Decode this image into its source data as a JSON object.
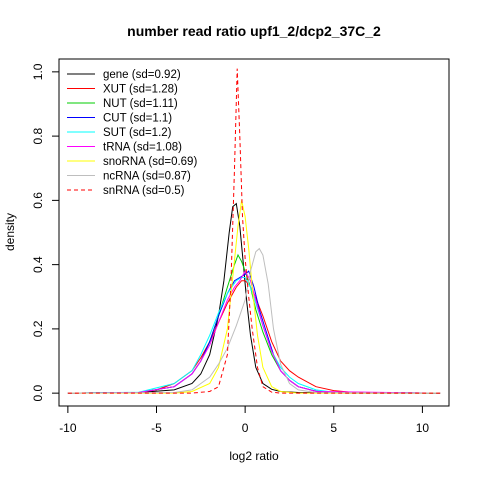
{
  "chart_data": {
    "type": "line",
    "title": "number read ratio upf1_2/dcp2_37C_2",
    "xlabel": "log2 ratio",
    "ylabel": "density",
    "xlim": [
      -10.5,
      11.5
    ],
    "ylim": [
      -0.04,
      1.04
    ],
    "xticks": [
      -10,
      -5,
      0,
      5,
      10
    ],
    "yticks": [
      0.0,
      0.2,
      0.4,
      0.6,
      0.8,
      1.0
    ],
    "xtick_labels": [
      "-10",
      "-5",
      "0",
      "5",
      "10"
    ],
    "ytick_labels": [
      "0.0",
      "0.2",
      "0.4",
      "0.6",
      "0.8",
      "1.0"
    ],
    "legend_position": "top-left",
    "series": [
      {
        "name": "gene (sd=0.92)",
        "color": "#000000",
        "dash": false,
        "x": [
          -10,
          -6,
          -4,
          -3,
          -2.5,
          -2,
          -1.5,
          -1.2,
          -0.9,
          -0.7,
          -0.5,
          -0.3,
          -0.1,
          0.1,
          0.3,
          0.6,
          1.0,
          1.5,
          2.0,
          3.0,
          4.0,
          6.0,
          11
        ],
        "y": [
          0.0,
          0.002,
          0.01,
          0.03,
          0.06,
          0.12,
          0.24,
          0.35,
          0.5,
          0.58,
          0.59,
          0.52,
          0.4,
          0.28,
          0.18,
          0.08,
          0.03,
          0.012,
          0.005,
          0.002,
          0.001,
          0.0,
          0.0
        ]
      },
      {
        "name": "XUT (sd=1.28)",
        "color": "#ff0000",
        "dash": false,
        "x": [
          -10,
          -6,
          -5,
          -4,
          -3,
          -2.5,
          -2,
          -1.5,
          -1,
          -0.5,
          -0.2,
          0,
          0.2,
          0.5,
          1,
          1.5,
          2,
          2.5,
          3,
          4,
          5,
          6,
          8,
          11
        ],
        "y": [
          0.0,
          0.002,
          0.01,
          0.03,
          0.07,
          0.11,
          0.16,
          0.22,
          0.28,
          0.33,
          0.35,
          0.35,
          0.34,
          0.31,
          0.24,
          0.16,
          0.1,
          0.07,
          0.05,
          0.02,
          0.008,
          0.003,
          0.001,
          0.0
        ]
      },
      {
        "name": "NUT (sd=1.11)",
        "color": "#00cc00",
        "dash": false,
        "x": [
          -10,
          -6,
          -4,
          -3,
          -2.5,
          -2,
          -1.5,
          -1,
          -0.6,
          -0.4,
          -0.2,
          0,
          0.3,
          0.6,
          1,
          1.5,
          2,
          2.5,
          3,
          4,
          5,
          11
        ],
        "y": [
          0.0,
          0.002,
          0.02,
          0.06,
          0.1,
          0.16,
          0.24,
          0.33,
          0.4,
          0.43,
          0.41,
          0.38,
          0.33,
          0.26,
          0.19,
          0.12,
          0.07,
          0.04,
          0.02,
          0.006,
          0.002,
          0.0
        ]
      },
      {
        "name": "CUT (sd=1.1)",
        "color": "#0000ff",
        "dash": false,
        "x": [
          -10,
          -6,
          -4,
          -3,
          -2.5,
          -2,
          -1.5,
          -1,
          -0.6,
          -0.3,
          0,
          0.2,
          0.5,
          0.8,
          1.2,
          1.6,
          2,
          2.5,
          3,
          4,
          5,
          11
        ],
        "y": [
          0.0,
          0.002,
          0.02,
          0.06,
          0.1,
          0.16,
          0.24,
          0.31,
          0.35,
          0.36,
          0.37,
          0.38,
          0.33,
          0.26,
          0.19,
          0.12,
          0.07,
          0.04,
          0.02,
          0.006,
          0.002,
          0.0
        ]
      },
      {
        "name": "SUT (sd=1.2)",
        "color": "#00ffff",
        "dash": false,
        "x": [
          -10,
          -6,
          -4,
          -3,
          -2.5,
          -2,
          -1.5,
          -1,
          -0.5,
          -0.2,
          0,
          0.3,
          0.6,
          1,
          1.5,
          2,
          2.5,
          3,
          4,
          5,
          11
        ],
        "y": [
          0.0,
          0.003,
          0.03,
          0.07,
          0.12,
          0.18,
          0.25,
          0.31,
          0.35,
          0.36,
          0.36,
          0.33,
          0.28,
          0.21,
          0.13,
          0.08,
          0.05,
          0.03,
          0.01,
          0.003,
          0.0
        ]
      },
      {
        "name": "tRNA (sd=1.08)",
        "color": "#ff00ff",
        "dash": false,
        "x": [
          -10,
          -6,
          -4,
          -3,
          -2.5,
          -2,
          -1.5,
          -1,
          -0.6,
          -0.3,
          0,
          0.3,
          0.6,
          1,
          1.5,
          2,
          2.5,
          3,
          4,
          11
        ],
        "y": [
          0.0,
          0.002,
          0.02,
          0.06,
          0.1,
          0.15,
          0.22,
          0.29,
          0.33,
          0.35,
          0.38,
          0.35,
          0.29,
          0.21,
          0.13,
          0.07,
          0.04,
          0.02,
          0.005,
          0.0
        ]
      },
      {
        "name": "snoRNA (sd=0.69)",
        "color": "#ffff00",
        "dash": false,
        "x": [
          -10,
          -4,
          -3,
          -2,
          -1.5,
          -1,
          -0.7,
          -0.4,
          -0.2,
          0,
          0.2,
          0.4,
          0.7,
          1,
          1.5,
          2,
          3,
          11
        ],
        "y": [
          0.0,
          0.0,
          0.005,
          0.03,
          0.08,
          0.2,
          0.36,
          0.52,
          0.6,
          0.55,
          0.45,
          0.33,
          0.18,
          0.08,
          0.02,
          0.005,
          0.0,
          0.0
        ]
      },
      {
        "name": "ncRNA (sd=0.87)",
        "color": "#bebebe",
        "dash": false,
        "x": [
          -10,
          -4,
          -3,
          -2,
          -1.5,
          -1,
          -0.5,
          0,
          0.3,
          0.6,
          0.8,
          1.0,
          1.3,
          1.6,
          2.0,
          2.5,
          3,
          4,
          11
        ],
        "y": [
          0.0,
          0.002,
          0.01,
          0.05,
          0.09,
          0.14,
          0.21,
          0.29,
          0.38,
          0.44,
          0.45,
          0.43,
          0.34,
          0.2,
          0.09,
          0.03,
          0.01,
          0.002,
          0.0
        ]
      },
      {
        "name": "snRNA (sd=0.5)",
        "color": "#ff0000",
        "dash": true,
        "x": [
          -10,
          -3,
          -2,
          -1.5,
          -1,
          -0.8,
          -0.6,
          -0.45,
          -0.3,
          -0.15,
          0,
          0.2,
          0.4,
          0.7,
          1.0,
          1.5,
          2,
          11
        ],
        "y": [
          0.0,
          0.0,
          0.005,
          0.02,
          0.12,
          0.35,
          0.7,
          1.01,
          0.8,
          0.55,
          0.42,
          0.3,
          0.2,
          0.08,
          0.02,
          0.003,
          0.0,
          0.0
        ]
      }
    ]
  }
}
